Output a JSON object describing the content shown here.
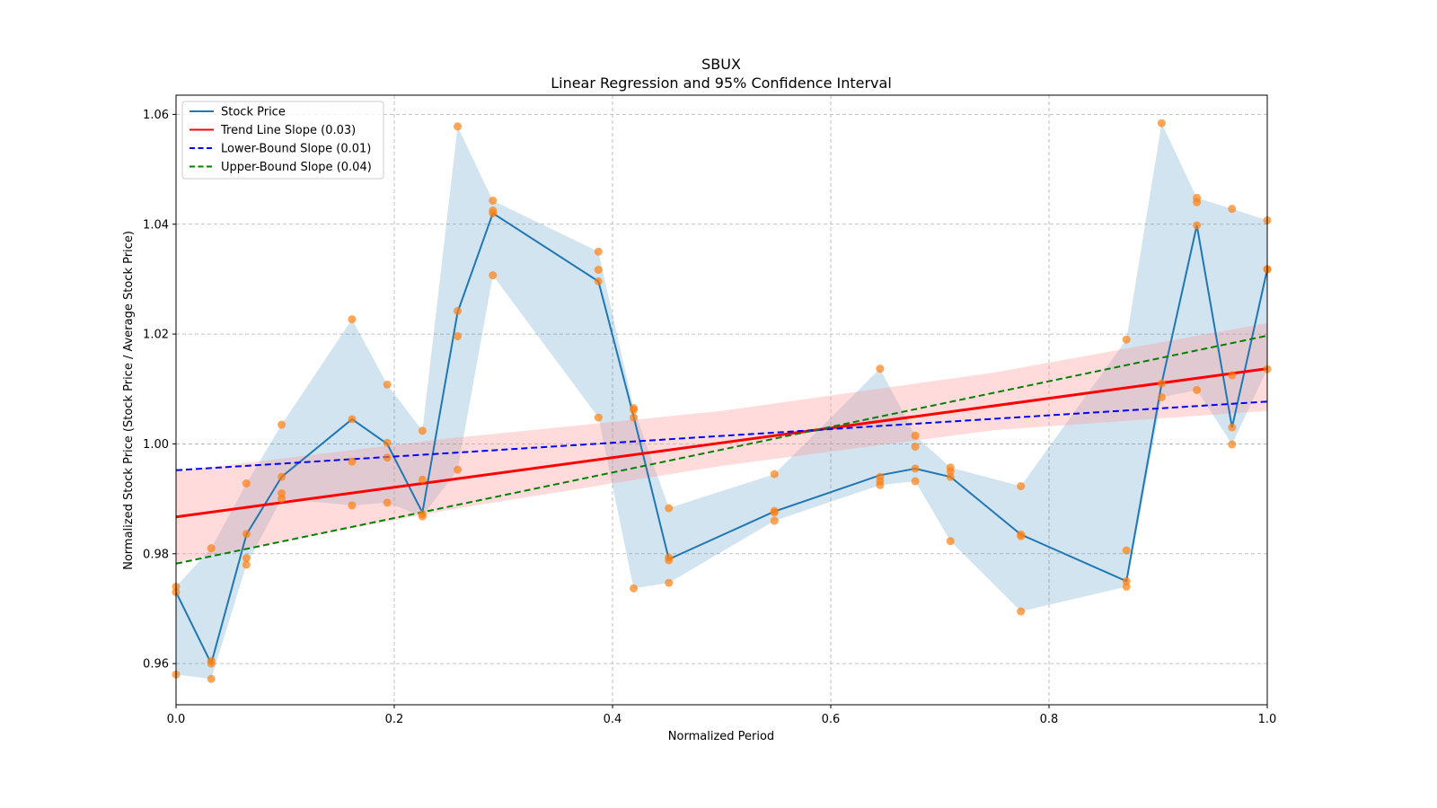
{
  "chart_data": {
    "type": "line",
    "title": "SBUX",
    "subtitle": "Linear Regression and 95% Confidence Interval",
    "xlabel": "Normalized Period",
    "ylabel": "Normalized Stock Price (Stock Price / Average Stock Price)",
    "xlim": [
      0.0,
      1.0
    ],
    "ylim": [
      0.9525,
      1.0635
    ],
    "xticks": [
      "0.0",
      "0.2",
      "0.4",
      "0.6",
      "0.8",
      "1.0"
    ],
    "xtick_values": [
      0.0,
      0.2,
      0.4,
      0.6,
      0.8,
      1.0
    ],
    "yticks": [
      "0.96",
      "0.98",
      "1.00",
      "1.02",
      "1.04",
      "1.06"
    ],
    "ytick_values": [
      0.96,
      0.98,
      1.0,
      1.02,
      1.04,
      1.06
    ],
    "grid": true,
    "legend_position": "top-left",
    "legend": [
      {
        "label": "Stock Price",
        "color": "#1f77b4",
        "style": "solid"
      },
      {
        "label": "Trend Line Slope (0.03)",
        "color": "#ff0000",
        "style": "solid"
      },
      {
        "label": "Lower-Bound Slope (0.01)",
        "color": "#0000ff",
        "style": "dashed"
      },
      {
        "label": "Upper-Bound Slope (0.04)",
        "color": "#008000",
        "style": "dashed"
      }
    ],
    "colors": {
      "stock_line": "#1f77b4",
      "stock_band": "#1f77b4",
      "scatter": "#ff7f0e",
      "trend": "#ff0000",
      "trend_band": "#ff9999",
      "lower": "#0000ff",
      "upper": "#008000"
    },
    "x_divisor": 31,
    "stock_series": [
      {
        "i": 0,
        "mean": 0.973,
        "points": [
          0.974,
          0.973,
          0.958
        ]
      },
      {
        "i": 1,
        "mean": 0.96,
        "points": [
          0.981,
          0.9605,
          0.96,
          0.9572
        ]
      },
      {
        "i": 2,
        "mean": 0.9835,
        "points": [
          0.9928,
          0.9836,
          0.9792,
          0.978
        ]
      },
      {
        "i": 3,
        "mean": 0.994,
        "points": [
          1.0035,
          0.994,
          0.991,
          0.99
        ]
      },
      {
        "i": 5,
        "mean": 1.0045,
        "points": [
          1.0227,
          1.0045,
          0.9968,
          0.9888
        ]
      },
      {
        "i": 6,
        "mean": 1.0,
        "points": [
          1.0108,
          1.0002,
          0.9975,
          0.9893
        ]
      },
      {
        "i": 7,
        "mean": 0.9875,
        "points": [
          1.0024,
          0.9935,
          0.9872,
          0.9868
        ]
      },
      {
        "i": 8,
        "mean": 1.024,
        "points": [
          1.0578,
          1.0242,
          1.0196,
          0.9953
        ]
      },
      {
        "i": 9,
        "mean": 1.042,
        "points": [
          1.0443,
          1.0425,
          1.042,
          1.0307
        ]
      },
      {
        "i": 12,
        "mean": 1.0296,
        "points": [
          1.035,
          1.0317,
          1.0296,
          1.0048
        ]
      },
      {
        "i": 13,
        "mean": 1.005,
        "points": [
          1.0065,
          1.0062,
          1.0048,
          0.9737
        ]
      },
      {
        "i": 14,
        "mean": 0.979,
        "points": [
          0.9883,
          0.9793,
          0.9788,
          0.9747
        ]
      },
      {
        "i": 17,
        "mean": 0.9877,
        "points": [
          0.9945,
          0.9878,
          0.9875,
          0.986
        ]
      },
      {
        "i": 20,
        "mean": 0.9943,
        "points": [
          1.0137,
          0.994,
          0.9932,
          0.9925
        ]
      },
      {
        "i": 21,
        "mean": 0.9955,
        "points": [
          1.0015,
          0.9995,
          0.9955,
          0.9932
        ]
      },
      {
        "i": 22,
        "mean": 0.994,
        "points": [
          0.9957,
          0.995,
          0.994,
          0.9823
        ]
      },
      {
        "i": 24,
        "mean": 0.9835,
        "points": [
          0.9923,
          0.9835,
          0.9832,
          0.9695
        ]
      },
      {
        "i": 27,
        "mean": 0.975,
        "points": [
          1.019,
          0.9806,
          0.975,
          0.974
        ]
      },
      {
        "i": 28,
        "mean": 1.011,
        "points": [
          1.0584,
          1.011,
          1.0085
        ]
      },
      {
        "i": 29,
        "mean": 1.0398,
        "points": [
          1.0448,
          1.044,
          1.0398,
          1.0098
        ]
      },
      {
        "i": 30,
        "mean": 1.003,
        "points": [
          1.0428,
          1.0125,
          1.003,
          0.9999
        ]
      },
      {
        "i": 31,
        "mean": 1.0318,
        "points": [
          1.0407,
          1.0318,
          1.0318,
          1.0136
        ]
      }
    ],
    "trend_line": {
      "x": [
        0.0,
        1.0
      ],
      "y": [
        0.9867,
        1.0137
      ],
      "slope": 0.03
    },
    "lower_bound_line": {
      "x": [
        0.0,
        1.0
      ],
      "y": [
        0.9952,
        1.0077
      ],
      "slope": 0.01
    },
    "upper_bound_line": {
      "x": [
        0.0,
        1.0
      ],
      "y": [
        0.9782,
        1.0197
      ],
      "slope": 0.04
    },
    "trend_confidence_band": {
      "x": [
        0.0,
        0.25,
        0.5,
        0.75,
        1.0
      ],
      "lower": [
        0.9785,
        0.988,
        0.996,
        1.0025,
        1.006
      ],
      "upper": [
        0.995,
        1.001,
        1.006,
        1.013,
        1.022
      ]
    }
  }
}
